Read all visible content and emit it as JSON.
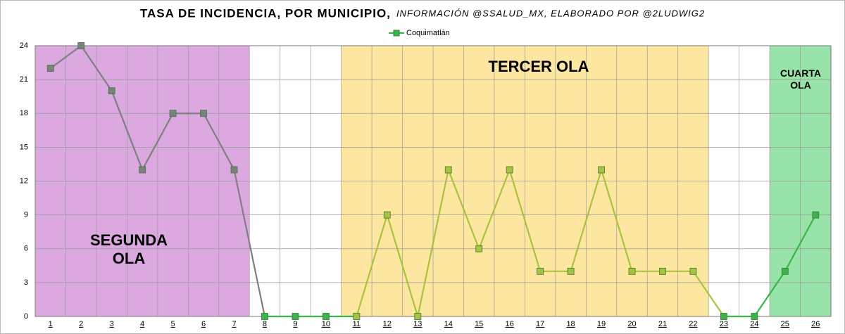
{
  "chart_data": {
    "type": "line",
    "title": "TASA DE INCIDENCIA, POR MUNICIPIO,",
    "subtitle": "INFORMACIÓN @SSALUD_MX, ELABORADO POR @2LUDWIG2",
    "categories": [
      "1",
      "2",
      "3",
      "4",
      "5",
      "6",
      "7",
      "8",
      "9",
      "10",
      "11",
      "12",
      "13",
      "14",
      "15",
      "16",
      "17",
      "18",
      "19",
      "20",
      "21",
      "22",
      "23",
      "24",
      "25",
      "26"
    ],
    "series": [
      {
        "name": "Coquimatlán",
        "color": "#3cb44b",
        "values": [
          22,
          24,
          20,
          13,
          18,
          18,
          13,
          0,
          0,
          0,
          0,
          9,
          0,
          13,
          6,
          13,
          4,
          4,
          13,
          4,
          4,
          4,
          0,
          0,
          4,
          9
        ]
      }
    ],
    "ylim": [
      0,
      24
    ],
    "yticks": [
      0,
      3,
      6,
      9,
      12,
      15,
      18,
      21,
      24
    ],
    "grid": true,
    "legend": "top",
    "bands": [
      {
        "label": "SEGUNDA OLA",
        "start": "1",
        "end": "7",
        "fill": "#dca8e0",
        "line_color": "#7f7f7f"
      },
      {
        "label": "TERCER OLA",
        "start": "11",
        "end": "22",
        "fill": "#fde7a0",
        "line_color": "#a9c23f"
      },
      {
        "label": "CUARTA OLA",
        "start": "25",
        "end": "26",
        "fill": "#97e3a9",
        "line_color": "#3cb44b"
      }
    ]
  }
}
